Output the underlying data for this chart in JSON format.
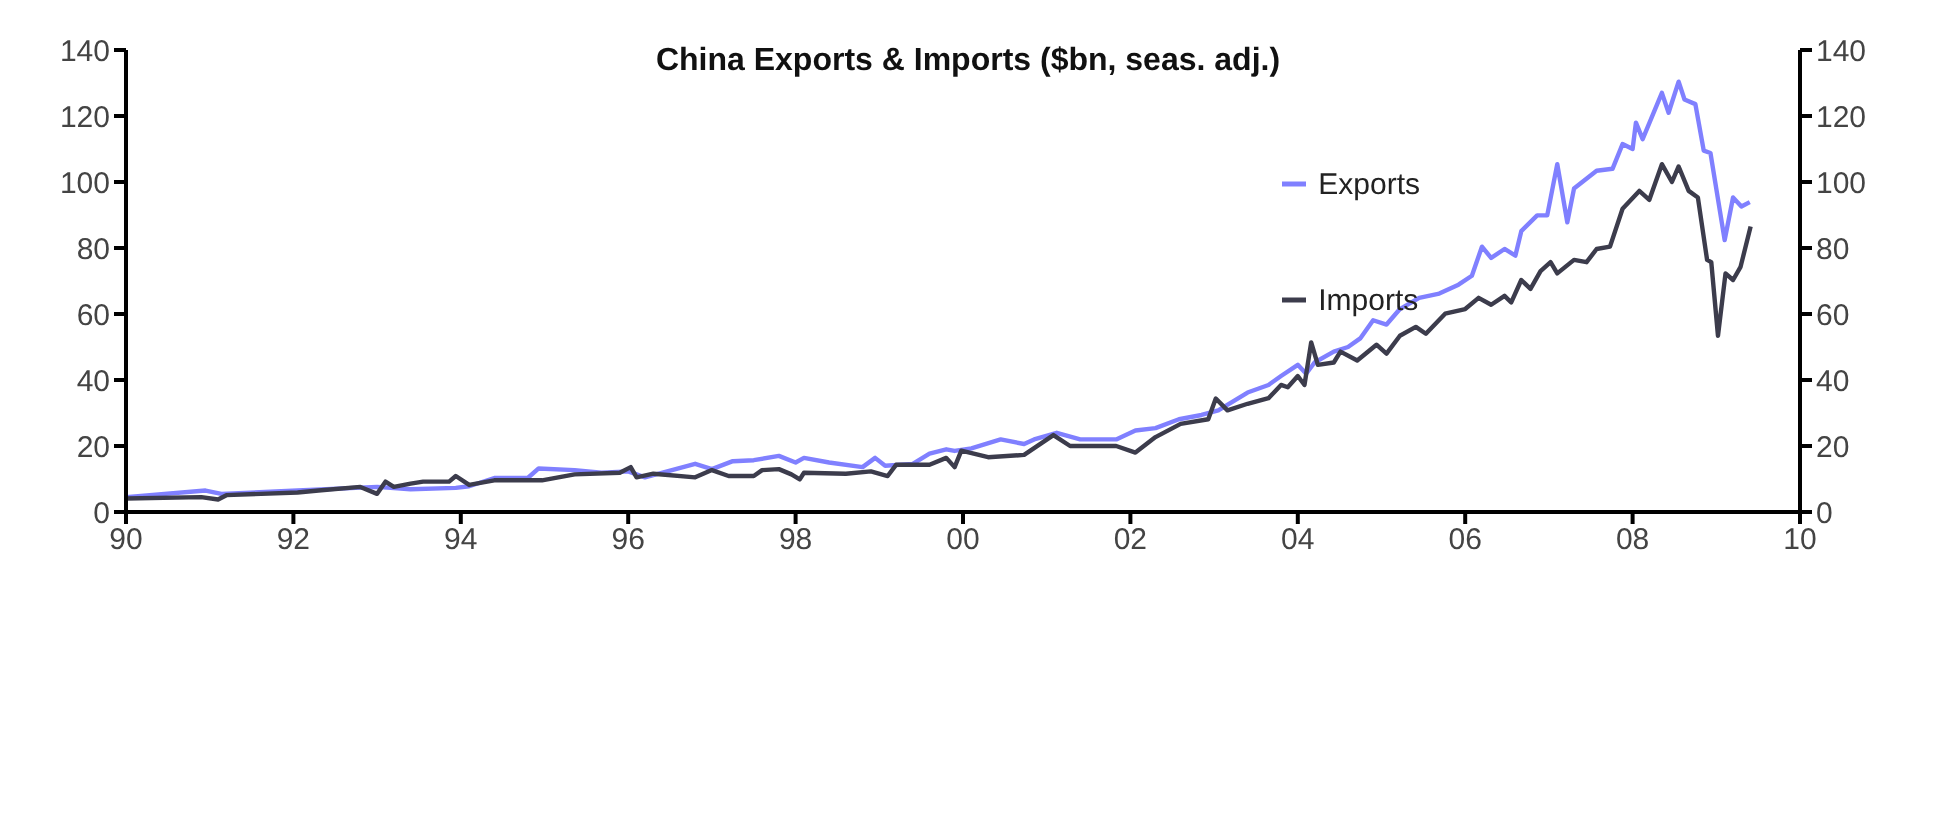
{
  "chart_data": {
    "type": "line",
    "title": "China Exports & Imports ($bn, seas. adj.)",
    "xlim": [
      1990,
      2010
    ],
    "xticks": [
      {
        "value": 1990,
        "label": "90"
      },
      {
        "value": 1992,
        "label": "92"
      },
      {
        "value": 1994,
        "label": "94"
      },
      {
        "value": 1996,
        "label": "96"
      },
      {
        "value": 1998,
        "label": "98"
      },
      {
        "value": 2000,
        "label": "00"
      },
      {
        "value": 2002,
        "label": "02"
      },
      {
        "value": 2004,
        "label": "04"
      },
      {
        "value": 2006,
        "label": "06"
      },
      {
        "value": 2008,
        "label": "08"
      },
      {
        "value": 2010,
        "label": "10"
      }
    ],
    "ylim": [
      0,
      140
    ],
    "yticks": [
      0,
      20,
      40,
      60,
      80,
      100,
      120,
      140
    ],
    "y2lim": [
      0,
      140
    ],
    "y2ticks": [
      0,
      20,
      40,
      60,
      80,
      100,
      120,
      140
    ],
    "grid": false,
    "legend": "top right",
    "marker": "none",
    "line_style": "solid",
    "series": [
      {
        "name": "Exports",
        "color": "#8080ff",
        "x": [
          1990,
          1990.95,
          1991.14,
          1992.05,
          1993.0,
          1993.4,
          1993.94,
          1994.1,
          1994.4,
          1994.8,
          1994.93,
          1995.36,
          1995.68,
          1996.0,
          1996.2,
          1996.6,
          1996.8,
          1997.0,
          1997.25,
          1997.5,
          1997.8,
          1998.0,
          1998.1,
          1998.4,
          1998.8,
          1998.95,
          1999.07,
          1999.4,
          1999.6,
          1999.8,
          1999.9,
          2000.1,
          2000.45,
          2000.73,
          2000.85,
          2001.12,
          2001.4,
          2001.83,
          2002.06,
          2002.3,
          2002.58,
          2002.85,
          2003.05,
          2003.4,
          2003.65,
          2003.8,
          2004.0,
          2004.1,
          2004.2,
          2004.43,
          2004.6,
          2004.75,
          2004.9,
          2005.06,
          2005.22,
          2005.45,
          2005.69,
          2005.92,
          2006.08,
          2006.2,
          2006.31,
          2006.47,
          2006.6,
          2006.67,
          2006.86,
          2006.98,
          2007.1,
          2007.22,
          2007.3,
          2007.57,
          2007.76,
          2007.88,
          2008.0,
          2008.04,
          2008.12,
          2008.35,
          2008.43,
          2008.55,
          2008.62,
          2008.75,
          2008.85,
          2008.93,
          2009.1,
          2009.2,
          2009.3,
          2009.4
        ],
        "values": [
          4.5,
          6.5,
          5.5,
          6.5,
          7.6,
          6.9,
          7.3,
          7.8,
          10.3,
          10.3,
          13.2,
          12.7,
          11.9,
          12.3,
          10.5,
          13.2,
          14.6,
          13,
          15.4,
          15.7,
          17,
          15,
          16.4,
          15,
          13.6,
          16.4,
          14,
          14.6,
          17.7,
          19,
          18.5,
          19.3,
          22,
          20.6,
          22,
          24,
          22,
          22,
          24.7,
          25.4,
          28.1,
          29.4,
          30.8,
          36.2,
          38.5,
          41.2,
          44.6,
          41.9,
          45.3,
          48.6,
          50,
          52.7,
          58.1,
          56.8,
          61.5,
          64.9,
          66.2,
          68.9,
          71.6,
          80.4,
          77,
          79.7,
          77.7,
          85.1,
          89.9,
          89.9,
          105.4,
          87.8,
          98,
          103.4,
          104,
          111.5,
          110,
          118,
          113,
          127,
          121,
          130.4,
          125,
          123.6,
          109.5,
          108.8,
          82.4,
          95.3,
          92.6,
          93.9
        ]
      },
      {
        "name": "Imports",
        "color": "#3c3c4c",
        "x": [
          1990,
          1990.9,
          1991.1,
          1991.2,
          1992.05,
          1992.3,
          1992.8,
          1993.0,
          1993.1,
          1993.2,
          1993.4,
          1993.55,
          1993.86,
          1993.94,
          1994.1,
          1994.4,
          1994.97,
          1995.36,
          1995.9,
          1996.03,
          1996.1,
          1996.3,
          1996.8,
          1997.0,
          1997.2,
          1997.5,
          1997.6,
          1997.8,
          1997.95,
          1998.05,
          1998.1,
          1998.6,
          1998.9,
          1999.1,
          1999.2,
          1999.6,
          1999.8,
          1999.9,
          1999.98,
          2000.3,
          2000.73,
          2001.08,
          2001.28,
          2001.5,
          2001.83,
          2002.06,
          2002.3,
          2002.6,
          2002.93,
          2003.02,
          2003.16,
          2003.4,
          2003.65,
          2003.8,
          2003.88,
          2004.0,
          2004.08,
          2004.16,
          2004.24,
          2004.43,
          2004.51,
          2004.71,
          2004.94,
          2005.06,
          2005.22,
          2005.41,
          2005.53,
          2005.76,
          2006.0,
          2006.16,
          2006.31,
          2006.47,
          2006.55,
          2006.67,
          2006.78,
          2006.9,
          2007.02,
          2007.1,
          2007.3,
          2007.45,
          2007.57,
          2007.73,
          2007.88,
          2008.08,
          2008.2,
          2008.35,
          2008.47,
          2008.55,
          2008.67,
          2008.78,
          2008.89,
          2008.94,
          2009.02,
          2009.11,
          2009.2,
          2009.29,
          2009.41
        ],
        "values": [
          4.1,
          4.5,
          3.8,
          5.1,
          5.9,
          6.5,
          7.6,
          5.5,
          9.2,
          7.6,
          8.6,
          9.2,
          9.2,
          10.9,
          8.2,
          9.6,
          9.6,
          11.4,
          11.9,
          13.6,
          10.5,
          11.6,
          10.5,
          12.7,
          10.9,
          10.9,
          12.7,
          13,
          11.4,
          9.9,
          11.9,
          11.6,
          12.3,
          10.9,
          14.3,
          14.3,
          16.4,
          13.6,
          18.6,
          16.6,
          17.3,
          23.3,
          20,
          20,
          20,
          18,
          22.7,
          26.7,
          28.1,
          34.4,
          30.8,
          32.8,
          34.5,
          38.5,
          37.8,
          41.2,
          38.5,
          51.4,
          44.6,
          45.3,
          48.6,
          45.9,
          50.7,
          48,
          53.4,
          56.1,
          54,
          60.1,
          61.5,
          64.9,
          62.8,
          65.5,
          63.5,
          70.3,
          67.6,
          73,
          75.7,
          72.3,
          76.4,
          75.7,
          79.7,
          80.4,
          91.9,
          97.3,
          94.6,
          105.4,
          100,
          104.7,
          97.3,
          95.3,
          76.4,
          75.7,
          53.4,
          72.3,
          70.3,
          74.3,
          86.5
        ]
      }
    ]
  }
}
